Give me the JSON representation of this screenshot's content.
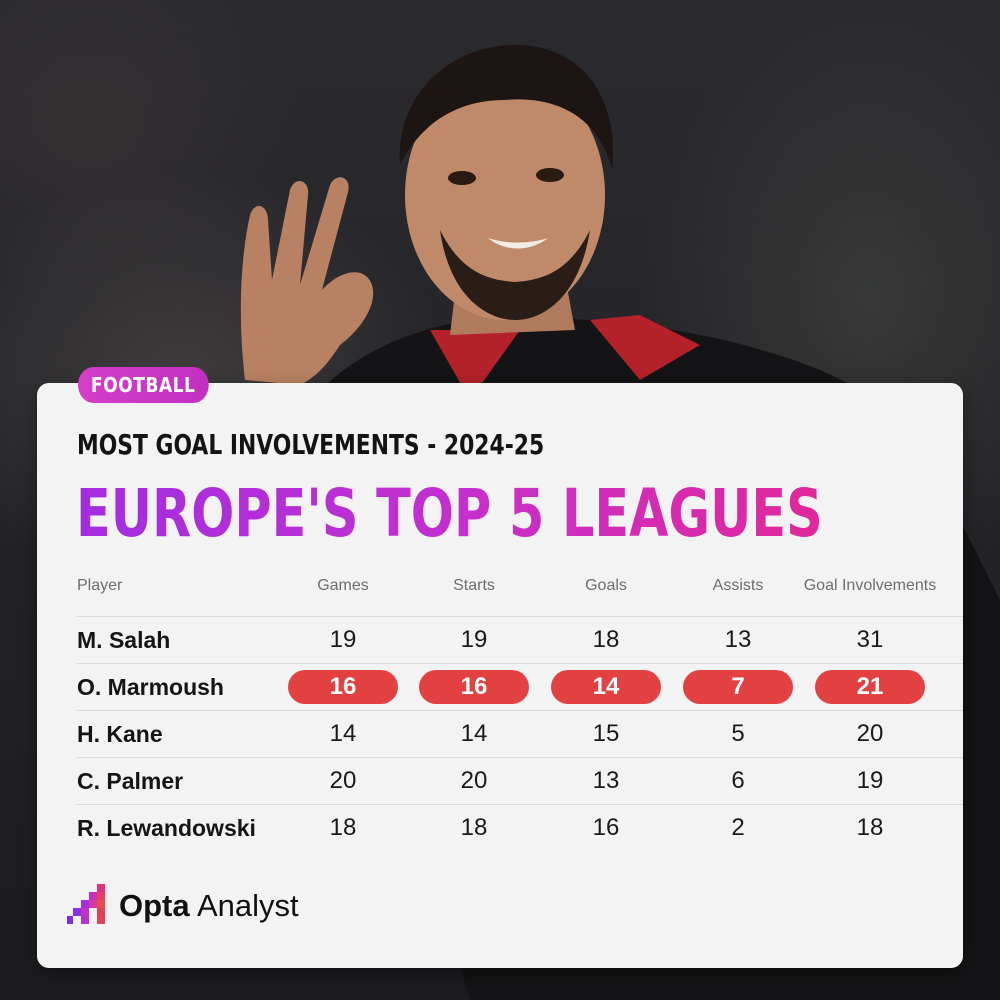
{
  "tag": "FOOTBALL",
  "subtitle": "MOST GOAL INVOLVEMENTS - 2024-25",
  "title": "EUROPE'S TOP 5 LEAGUES",
  "table": {
    "headers": [
      "Player",
      "Games",
      "Starts",
      "Goals",
      "Assists",
      "Goal Involvements"
    ],
    "highlight_color": "#e34042",
    "rows": [
      {
        "player": "M. Salah",
        "values": [
          "19",
          "19",
          "18",
          "13",
          "31"
        ]
      },
      {
        "player": "O. Marmoush",
        "values": [
          "16",
          "16",
          "14",
          "7",
          "21"
        ],
        "highlight": true
      },
      {
        "player": "H. Kane",
        "values": [
          "14",
          "14",
          "15",
          "5",
          "20"
        ]
      },
      {
        "player": "C. Palmer",
        "values": [
          "20",
          "20",
          "13",
          "6",
          "19"
        ]
      },
      {
        "player": "R. Lewandowski",
        "values": [
          "18",
          "18",
          "16",
          "2",
          "18"
        ]
      }
    ]
  },
  "brand": {
    "name_bold": "Opta",
    "name_light": "Analyst",
    "logo_icon": "opta-logo-icon"
  },
  "colors": {
    "accent_pink": "#d43ec8",
    "title_gradient_start": "#a22ee0",
    "title_gradient_end": "#e2289a",
    "card_bg": "#f4f3f4"
  }
}
